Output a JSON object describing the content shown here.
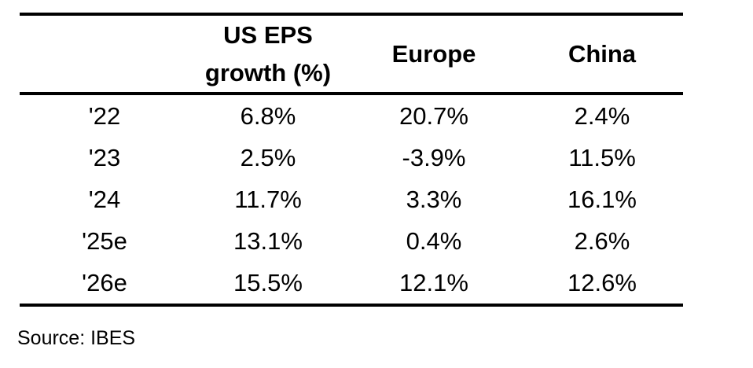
{
  "colors": {
    "background": "#ffffff",
    "text": "#000000",
    "rule": "#000000"
  },
  "table": {
    "header": {
      "col1": "",
      "us_line1": "US EPS",
      "us_line2": "growth (%)",
      "europe": "Europe",
      "china": "China"
    },
    "rows": [
      {
        "label": "'22",
        "us": "6.8%",
        "europe": "20.7%",
        "china": "2.4%"
      },
      {
        "label": "'23",
        "us": "2.5%",
        "europe": "-3.9%",
        "china": "11.5%"
      },
      {
        "label": "'24",
        "us": "11.7%",
        "europe": "3.3%",
        "china": "16.1%"
      },
      {
        "label": "'25e",
        "us": "13.1%",
        "europe": "0.4%",
        "china": "2.6%"
      },
      {
        "label": "'26e",
        "us": "15.5%",
        "europe": "12.1%",
        "china": "12.6%"
      }
    ]
  },
  "source_note": "Source: IBES",
  "chart_data": {
    "type": "table",
    "columns": [
      "",
      "US EPS growth (%)",
      "Europe",
      "China"
    ],
    "rows": [
      [
        "'22",
        "6.8%",
        "20.7%",
        "2.4%"
      ],
      [
        "'23",
        "2.5%",
        "-3.9%",
        "11.5%"
      ],
      [
        "'24",
        "11.7%",
        "3.3%",
        "16.1%"
      ],
      [
        "'25e",
        "13.1%",
        "0.4%",
        "2.6%"
      ],
      [
        "'26e",
        "15.5%",
        "12.1%",
        "12.6%"
      ]
    ],
    "series": [
      {
        "name": "US EPS growth (%)",
        "values": [
          6.8,
          2.5,
          11.7,
          13.1,
          15.5
        ]
      },
      {
        "name": "Europe",
        "values": [
          20.7,
          -3.9,
          3.3,
          0.4,
          12.1
        ]
      },
      {
        "name": "China",
        "values": [
          2.4,
          11.5,
          16.1,
          2.6,
          12.6
        ]
      }
    ],
    "categories": [
      "'22",
      "'23",
      "'24",
      "'25e",
      "'26e"
    ],
    "title": "",
    "source": "Source: IBES"
  }
}
